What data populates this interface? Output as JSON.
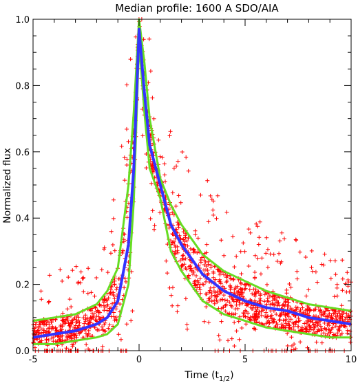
{
  "chart_data": {
    "type": "scatter",
    "title": "Median profile: 1600 A SDO/AIA",
    "xlabel_main": "Time (t",
    "xlabel_sub": "1/2",
    "xlabel_close": ")",
    "ylabel": "Normalized flux",
    "xlim": [
      -5,
      10
    ],
    "ylim": [
      0,
      1.0
    ],
    "x_ticks": [
      "-5",
      "0",
      "5",
      "10"
    ],
    "x_tick_values": [
      -5,
      0,
      5,
      10
    ],
    "y_ticks": [
      "0.0",
      "0.2",
      "0.4",
      "0.6",
      "0.8",
      "1.0"
    ],
    "y_tick_values": [
      0,
      0.2,
      0.4,
      0.6,
      0.8,
      1.0
    ],
    "grid": false,
    "legend": "none",
    "colors": {
      "scatter": "#ff0000",
      "median": "#3333ff",
      "percentiles": "#66dd22",
      "axes": "#000000"
    },
    "series": [
      {
        "role": "median",
        "x": [
          -5,
          -4,
          -3,
          -2,
          -1.5,
          -1,
          -0.5,
          -0.25,
          0,
          0.25,
          0.5,
          1,
          1.5,
          2,
          3,
          4,
          5,
          6,
          7,
          8,
          9,
          10
        ],
        "y": [
          0.04,
          0.05,
          0.06,
          0.08,
          0.1,
          0.15,
          0.32,
          0.55,
          0.97,
          0.78,
          0.62,
          0.5,
          0.38,
          0.32,
          0.23,
          0.18,
          0.15,
          0.13,
          0.12,
          0.1,
          0.09,
          0.08
        ]
      },
      {
        "role": "upper-percentile",
        "x": [
          -5,
          -4,
          -3,
          -2,
          -1.5,
          -1,
          -0.5,
          -0.25,
          0,
          0.25,
          0.5,
          1,
          1.5,
          2,
          3,
          4,
          5,
          6,
          7,
          8,
          9,
          10
        ],
        "y": [
          0.09,
          0.1,
          0.11,
          0.14,
          0.18,
          0.25,
          0.5,
          0.72,
          1.0,
          0.87,
          0.7,
          0.52,
          0.44,
          0.38,
          0.29,
          0.24,
          0.21,
          0.18,
          0.16,
          0.14,
          0.13,
          0.12
        ]
      },
      {
        "role": "lower-percentile",
        "x": [
          -5,
          -4,
          -3,
          -2,
          -1.5,
          -1,
          -0.5,
          -0.25,
          0,
          0.25,
          0.5,
          1,
          1.5,
          2,
          3,
          4,
          5,
          6,
          7,
          8,
          9,
          10
        ],
        "y": [
          0.02,
          0.02,
          0.03,
          0.04,
          0.05,
          0.08,
          0.2,
          0.45,
          0.93,
          0.72,
          0.55,
          0.46,
          0.3,
          0.24,
          0.15,
          0.11,
          0.09,
          0.07,
          0.06,
          0.05,
          0.04,
          0.04
        ]
      }
    ]
  }
}
